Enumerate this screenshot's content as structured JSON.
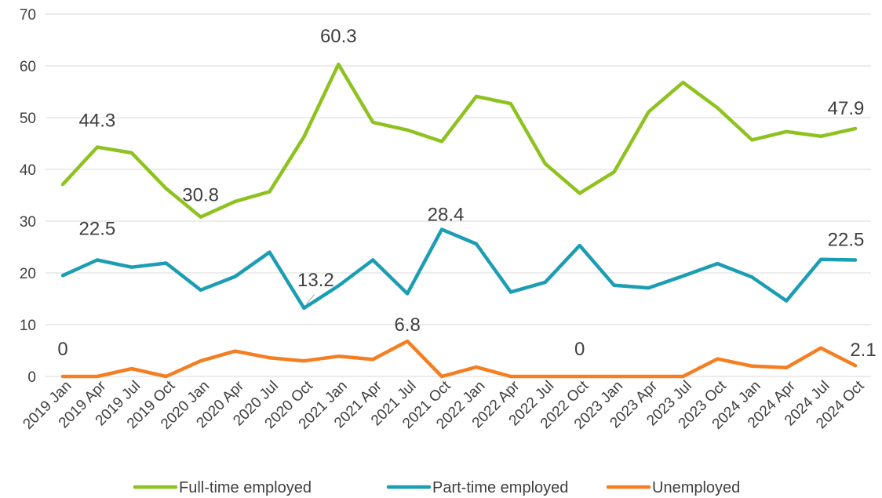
{
  "chart_data": {
    "type": "line",
    "title": "",
    "xlabel": "",
    "ylabel": "",
    "ylim": [
      0,
      70
    ],
    "yticks": [
      0,
      10,
      20,
      30,
      40,
      50,
      60,
      70
    ],
    "grid": "horizontal",
    "legend_position": "bottom",
    "categories": [
      "2019 Jan",
      "2019 Apr",
      "2019 Jul",
      "2019 Oct",
      "2020 Jan",
      "2020 Apr",
      "2020 Jul",
      "2020 Oct",
      "2021 Jan",
      "2021 Apr",
      "2021 Jul",
      "2021 Oct",
      "2022 Jan",
      "2022 Apr",
      "2022 Jul",
      "2022 Oct",
      "2023 Jan",
      "2023 Apr",
      "2023 Jul",
      "2023 Oct",
      "2024 Jan",
      "2024 Apr",
      "2024 Jul",
      "2024 Oct"
    ],
    "series": [
      {
        "name": "Full-time employed",
        "color": "#8DC21F",
        "values": [
          37.1,
          44.3,
          43.2,
          36.3,
          30.8,
          33.8,
          35.7,
          46.3,
          60.3,
          49.1,
          47.6,
          45.4,
          54.1,
          52.7,
          41.1,
          35.4,
          39.5,
          51.1,
          56.8,
          51.9,
          45.7,
          47.3,
          46.4,
          47.9
        ],
        "labels": [
          {
            "index": 1,
            "text": "44.3"
          },
          {
            "index": 4,
            "text": "30.8"
          },
          {
            "index": 8,
            "text": "60.3"
          },
          {
            "index": 23,
            "text": "47.9"
          }
        ]
      },
      {
        "name": "Part-time employed",
        "color": "#1B9DB3",
        "values": [
          19.5,
          22.5,
          21.1,
          21.9,
          16.7,
          19.3,
          24.0,
          13.2,
          17.5,
          22.5,
          16.0,
          28.4,
          25.6,
          16.3,
          18.2,
          25.3,
          17.6,
          17.1,
          19.4,
          21.8,
          19.2,
          14.6,
          22.6,
          22.5
        ],
        "labels": [
          {
            "index": 1,
            "text": "22.5"
          },
          {
            "index": 7,
            "text": "13.2"
          },
          {
            "index": 11,
            "text": "28.4"
          },
          {
            "index": 23,
            "text": "22.5"
          }
        ]
      },
      {
        "name": "Unemployed",
        "color": "#F57E20",
        "values": [
          0,
          0,
          1.5,
          0,
          3.0,
          4.9,
          3.6,
          3.0,
          3.9,
          3.3,
          6.8,
          0,
          1.8,
          0,
          0,
          0,
          0,
          0,
          0,
          3.4,
          2.0,
          1.7,
          5.5,
          2.1
        ],
        "labels": [
          {
            "index": 0,
            "text": "0"
          },
          {
            "index": 10,
            "text": "6.8"
          },
          {
            "index": 15,
            "text": "0"
          },
          {
            "index": 23,
            "text": "2.1"
          }
        ]
      }
    ]
  }
}
